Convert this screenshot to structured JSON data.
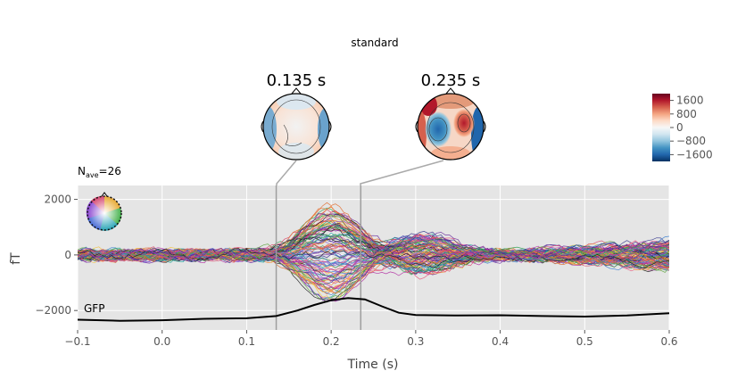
{
  "chart_data": {
    "type": "line",
    "title": "standard",
    "nave_prefix": "N",
    "nave_sub": "ave",
    "nave_value": "=26",
    "xlabel": "Time (s)",
    "ylabel": "fT",
    "xlim": [
      -0.1,
      0.6
    ],
    "ylim": [
      -2700,
      2500
    ],
    "xticks": [
      -0.1,
      0.0,
      0.1,
      0.2,
      0.3,
      0.4,
      0.5,
      0.6
    ],
    "xtick_labels": [
      "−0.1",
      "0.0",
      "0.1",
      "0.2",
      "0.3",
      "0.4",
      "0.5",
      "0.6"
    ],
    "yticks": [
      -2000,
      0,
      2000
    ],
    "ytick_labels": [
      "−2000",
      "0",
      "2000"
    ],
    "grid": true,
    "background_color": "#e5e5e5",
    "topomap_times": [
      {
        "time": 0.135,
        "label": "0.135 s"
      },
      {
        "time": 0.235,
        "label": "0.235 s"
      }
    ],
    "gfp_label": "GFP",
    "gfp": {
      "x": [
        -0.1,
        -0.05,
        0.0,
        0.05,
        0.1,
        0.135,
        0.16,
        0.18,
        0.2,
        0.22,
        0.24,
        0.26,
        0.28,
        0.3,
        0.35,
        0.4,
        0.45,
        0.5,
        0.55,
        0.6
      ],
      "y": [
        -2330,
        -2370,
        -2350,
        -2300,
        -2280,
        -2200,
        -2000,
        -1800,
        -1630,
        -1550,
        -1600,
        -1850,
        -2080,
        -2160,
        -2180,
        -2170,
        -2200,
        -2220,
        -2180,
        -2100
      ]
    },
    "colorbar": {
      "ticks": [
        1600,
        800,
        0,
        -800,
        -1600
      ],
      "tick_labels": [
        "1600",
        "800",
        "0",
        "−800",
        "−1600"
      ],
      "range": [
        -2000,
        2000
      ],
      "colors": [
        "#053061",
        "#2166ac",
        "#4393c3",
        "#92c5de",
        "#d1e5f0",
        "#f7f7f7",
        "#fddbc7",
        "#f4a582",
        "#d6604d",
        "#b2182b",
        "#67001f"
      ]
    },
    "line_count": 102,
    "line_colors": [
      "#1f1f1f",
      "#3b3b8f",
      "#6a2ca0",
      "#b12ea3",
      "#e8547a",
      "#f08a3a",
      "#f3c245",
      "#2e9e4b",
      "#26a6a0",
      "#3c7fd0",
      "#8a5bd1",
      "#d9486a",
      "#e36c2c",
      "#5aa33a"
    ]
  }
}
